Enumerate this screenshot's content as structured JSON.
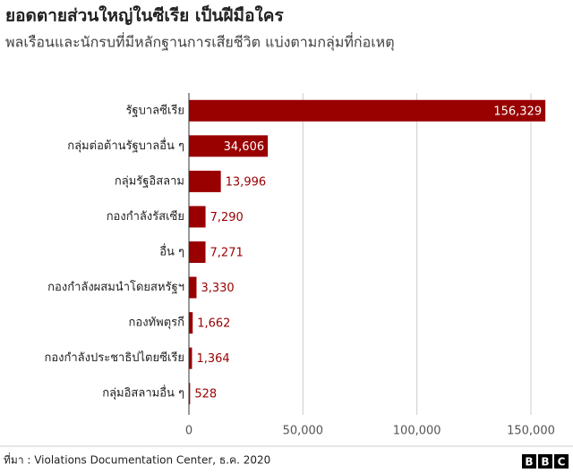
{
  "chart_data": {
    "type": "bar",
    "orientation": "horizontal",
    "title": "ยอดตายส่วนใหญ่ในซีเรีย เป็นฝีมือใคร",
    "subtitle": "พลเรือนและนักรบที่มีหลักฐานการเสียชีวิต แบ่งตามกลุ่มที่ก่อเหตุ",
    "categories": [
      "รัฐบาลซีเรีย",
      "กลุ่มต่อต้านรัฐบาลอื่น ๆ",
      "กลุ่มรัฐอิสลาม",
      "กองกำลังรัสเซีย",
      "อื่น ๆ",
      "กองกำลังผสมนำโดยสหรัฐฯ",
      "กองทัพตุรกี",
      "กองกำลังประชาธิปไตยซีเรีย",
      "กลุ่มอิสลามอื่น ๆ"
    ],
    "values": [
      156329,
      34606,
      13996,
      7290,
      7271,
      3330,
      1662,
      1364,
      528
    ],
    "value_labels": [
      "156,329",
      "34,606",
      "13,996",
      "7,290",
      "7,271",
      "3,330",
      "1,662",
      "1,364",
      "528"
    ],
    "color": "#990000",
    "xlim": [
      0,
      160000
    ],
    "xticks": [
      0,
      {
        "value": 50000,
        "label": "50,000"
      },
      {
        "value": 100000,
        "label": "100,000"
      },
      {
        "value": 150000,
        "label": "150,000"
      }
    ],
    "grid": true,
    "source": "ที่มา : Violations Documentation Center, ธ.ค. 2020",
    "logo": [
      "B",
      "B",
      "C"
    ]
  }
}
